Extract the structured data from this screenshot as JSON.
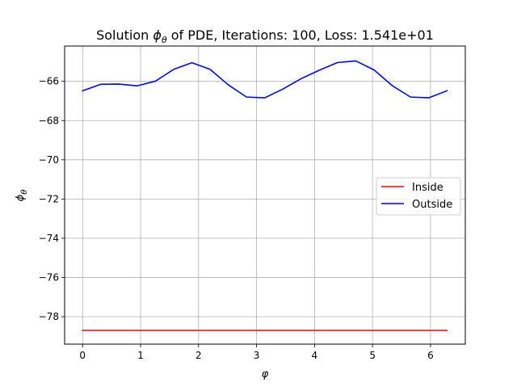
{
  "chart_data": {
    "type": "line",
    "title_prefix": "Solution ",
    "title_symbol": "ϕ",
    "title_symbol_sub": "θ",
    "title_suffix": " of PDE, Iterations: 100, Loss: 1.541e+01",
    "xlabel": "φ",
    "ylabel_symbol": "ϕ",
    "ylabel_sub": "θ",
    "xlim": [
      -0.31,
      6.6
    ],
    "ylim": [
      -79.4,
      -64.2
    ],
    "x_ticks": [
      0,
      1,
      2,
      3,
      4,
      5,
      6
    ],
    "y_ticks": [
      -78,
      -76,
      -74,
      -72,
      -70,
      -68,
      -66
    ],
    "grid": true,
    "legend_position": "center-right",
    "series": [
      {
        "name": "Inside",
        "color": "#ff0000",
        "x": [
          0,
          6.283
        ],
        "y": [
          -78.7,
          -78.7
        ]
      },
      {
        "name": "Outside",
        "color": "#0000ff",
        "x": [
          0,
          0.314,
          0.628,
          0.942,
          1.257,
          1.571,
          1.885,
          2.199,
          2.513,
          2.827,
          3.142,
          3.456,
          3.77,
          4.084,
          4.398,
          4.712,
          5.027,
          5.341,
          5.655,
          5.969,
          6.283
        ],
        "y": [
          -66.48,
          -66.15,
          -66.14,
          -66.23,
          -65.99,
          -65.39,
          -65.05,
          -65.39,
          -66.18,
          -66.8,
          -66.84,
          -66.39,
          -65.86,
          -65.43,
          -65.04,
          -64.96,
          -65.42,
          -66.22,
          -66.8,
          -66.84,
          -66.48
        ]
      }
    ]
  }
}
